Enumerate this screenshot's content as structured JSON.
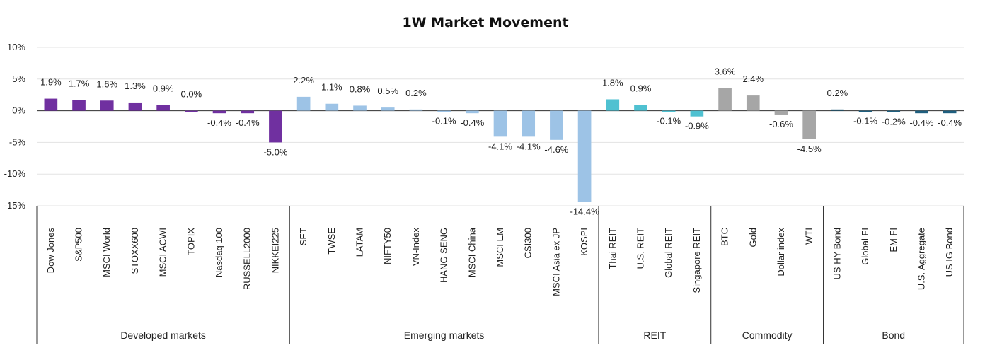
{
  "chart_data": {
    "type": "bar",
    "title": "1W Market Movement",
    "ylim": [
      -15,
      10
    ],
    "yticks": [
      10,
      5,
      0,
      -5,
      -10,
      -15
    ],
    "ytick_labels": [
      "10%",
      "5%",
      "0%",
      "-5%",
      "-10%",
      "-15%"
    ],
    "grid": true,
    "groups": [
      {
        "name": "Developed  markets",
        "color": "#7030a0",
        "categories": [
          "Dow Jones",
          "S&P500",
          "MSCI World",
          "STOXX600",
          "MSCI ACWI",
          "TOPIX",
          "Nasdaq 100",
          "RUSSELL2000",
          "NIKKEI225"
        ],
        "values": [
          1.9,
          1.7,
          1.6,
          1.3,
          0.9,
          0.0,
          -0.4,
          -0.4,
          -5.0
        ],
        "labels": [
          "1.9%",
          "1.7%",
          "1.6%",
          "1.3%",
          "0.9%",
          "0.0%",
          "-0.4%",
          "-0.4%",
          "-5.0%"
        ]
      },
      {
        "name": "Emerging markets",
        "color": "#9dc3e6",
        "categories": [
          "SET",
          "TWSE",
          "LATAM",
          "NIFTY50",
          "VN-Index",
          "HANG SENG",
          "MSCI China",
          "MSCI EM",
          "CSI300",
          "MSCI Asia ex JP",
          "KOSPI"
        ],
        "values": [
          2.2,
          1.1,
          0.8,
          0.5,
          0.2,
          -0.1,
          -0.4,
          -4.1,
          -4.1,
          -4.6,
          -14.4
        ],
        "labels": [
          "2.2%",
          "1.1%",
          "0.8%",
          "0.5%",
          "0.2%",
          "-0.1%",
          "-0.4%",
          "-4.1%",
          "-4.1%",
          "-4.6%",
          "-14.4%"
        ]
      },
      {
        "name": "REIT",
        "color": "#4fc1d1",
        "categories": [
          "Thai REIT",
          "U.S. REIT",
          "Global REIT",
          "Singapore REIT"
        ],
        "values": [
          1.8,
          0.9,
          -0.1,
          -0.9
        ],
        "labels": [
          "1.8%",
          "0.9%",
          "-0.1%",
          "-0.9%"
        ]
      },
      {
        "name": "Commodity",
        "color": "#a6a6a6",
        "categories": [
          "BTC",
          "Gold",
          "Dollar index",
          "WTI"
        ],
        "values": [
          3.6,
          2.4,
          -0.6,
          -4.5
        ],
        "labels": [
          "3.6%",
          "2.4%",
          "-0.6%",
          "-4.5%"
        ]
      },
      {
        "name": "Bond",
        "color": "#1f5f7f",
        "categories": [
          "US HY Bond",
          "Global FI",
          "EM FI",
          "U.S. Aggregate",
          "US IG Bond"
        ],
        "values": [
          0.2,
          -0.1,
          -0.2,
          -0.4,
          -0.4
        ],
        "labels": [
          "0.2%",
          "-0.1%",
          "-0.2%",
          "-0.4%",
          "-0.4%"
        ]
      }
    ]
  }
}
